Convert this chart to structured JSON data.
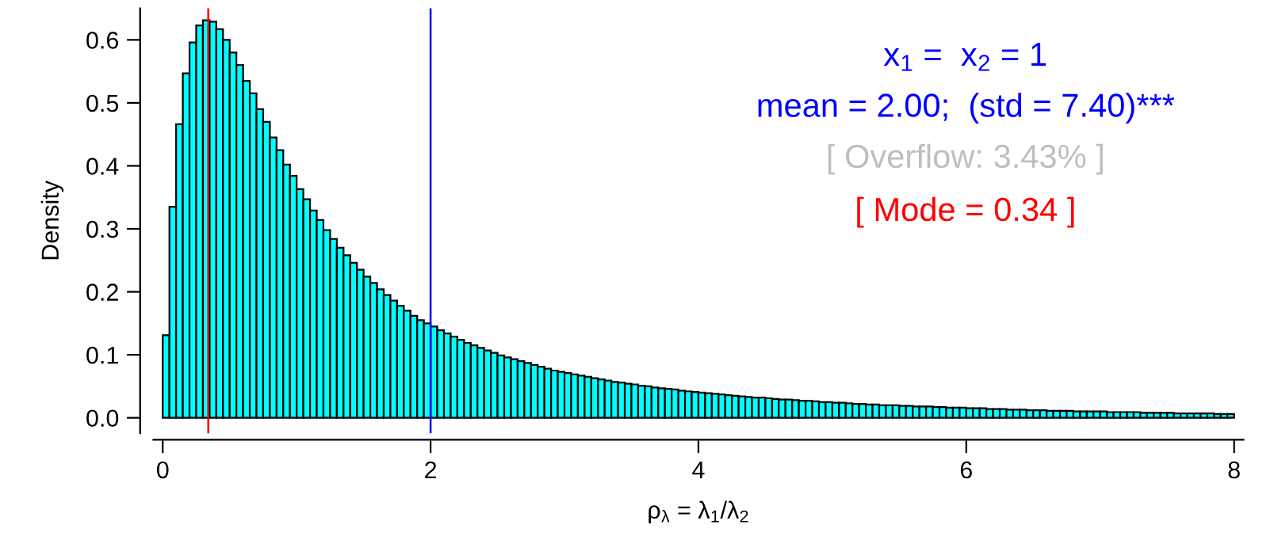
{
  "chart_data": {
    "type": "histogram",
    "xlabel": "ρ$_{λ}$ = λ$_{1}$/λ$_{2}$",
    "ylabel": "Density",
    "bins": [
      0,
      0.05,
      0.1,
      0.15,
      0.2,
      0.25,
      0.3,
      0.35,
      0.4,
      0.45,
      0.5,
      0.55,
      0.6,
      0.65,
      0.7,
      0.75,
      0.8,
      0.85,
      0.9,
      0.95,
      1,
      1.05,
      1.1,
      1.15,
      1.2,
      1.25,
      1.3,
      1.35,
      1.4,
      1.45,
      1.5,
      1.55,
      1.6,
      1.65,
      1.7,
      1.75,
      1.8,
      1.85,
      1.9,
      1.95,
      2,
      2.05,
      2.1,
      2.15,
      2.2,
      2.25,
      2.3,
      2.35,
      2.4,
      2.45,
      2.5,
      2.55,
      2.6,
      2.65,
      2.7,
      2.75,
      2.8,
      2.85,
      2.9,
      2.95,
      3,
      3.05,
      3.1,
      3.15,
      3.2,
      3.25,
      3.3,
      3.35,
      3.4,
      3.45,
      3.5,
      3.55,
      3.6,
      3.65,
      3.7,
      3.75,
      3.8,
      3.85,
      3.9,
      3.95,
      4,
      4.05,
      4.1,
      4.15,
      4.2,
      4.25,
      4.3,
      4.35,
      4.4,
      4.45,
      4.5,
      4.55,
      4.6,
      4.65,
      4.7,
      4.75,
      4.8,
      4.85,
      4.9,
      4.95,
      5,
      5.05,
      5.1,
      5.15,
      5.2,
      5.25,
      5.3,
      5.35,
      5.4,
      5.45,
      5.5,
      5.55,
      5.6,
      5.65,
      5.7,
      5.75,
      5.8,
      5.85,
      5.9,
      5.95,
      6,
      6.05,
      6.1,
      6.15,
      6.2,
      6.25,
      6.3,
      6.35,
      6.4,
      6.45,
      6.5,
      6.55,
      6.6,
      6.65,
      6.7,
      6.75,
      6.8,
      6.85,
      6.9,
      6.95,
      7,
      7.05,
      7.1,
      7.15,
      7.2,
      7.25,
      7.3,
      7.35,
      7.4,
      7.45,
      7.5,
      7.55,
      7.6,
      7.65,
      7.7,
      7.75,
      7.8,
      7.85,
      7.9,
      7.95,
      8
    ],
    "values": [
      0.131,
      0.335,
      0.466,
      0.547,
      0.596,
      0.623,
      0.631,
      0.629,
      0.617,
      0.6,
      0.58,
      0.56,
      0.535,
      0.515,
      0.49,
      0.47,
      0.445,
      0.425,
      0.402,
      0.384,
      0.363,
      0.347,
      0.329,
      0.314,
      0.298,
      0.284,
      0.27,
      0.258,
      0.246,
      0.235,
      0.224,
      0.214,
      0.204,
      0.195,
      0.186,
      0.178,
      0.17,
      0.162,
      0.155,
      0.15,
      0.145,
      0.139,
      0.134,
      0.129,
      0.124,
      0.119,
      0.115,
      0.111,
      0.107,
      0.103,
      0.099,
      0.096,
      0.093,
      0.09,
      0.087,
      0.084,
      0.081,
      0.078,
      0.075,
      0.073,
      0.071,
      0.069,
      0.067,
      0.065,
      0.063,
      0.061,
      0.059,
      0.057,
      0.056,
      0.054,
      0.053,
      0.051,
      0.05,
      0.048,
      0.047,
      0.046,
      0.045,
      0.043,
      0.042,
      0.041,
      0.04,
      0.039,
      0.038,
      0.037,
      0.036,
      0.035,
      0.034,
      0.033,
      0.032,
      0.032,
      0.031,
      0.03,
      0.029,
      0.029,
      0.028,
      0.027,
      0.027,
      0.026,
      0.025,
      0.025,
      0.024,
      0.024,
      0.023,
      0.022,
      0.022,
      0.021,
      0.021,
      0.02,
      0.02,
      0.02,
      0.019,
      0.019,
      0.018,
      0.018,
      0.018,
      0.017,
      0.017,
      0.016,
      0.016,
      0.016,
      0.015,
      0.015,
      0.015,
      0.014,
      0.014,
      0.014,
      0.013,
      0.013,
      0.013,
      0.012,
      0.012,
      0.012,
      0.011,
      0.011,
      0.011,
      0.011,
      0.01,
      0.01,
      0.01,
      0.01,
      0.01,
      0.009,
      0.009,
      0.009,
      0.009,
      0.009,
      0.008,
      0.008,
      0.008,
      0.008,
      0.008,
      0.007,
      0.007,
      0.007,
      0.007,
      0.007,
      0.007,
      0.006,
      0.006,
      0.006
    ],
    "color": "#00ffff",
    "xlim": [
      -0.07,
      8.07
    ],
    "ylim": [
      -0.0245,
      0.65
    ],
    "xticks": [
      0,
      2,
      4,
      6,
      8
    ],
    "yticks": [
      {
        "value": 0,
        "label": "0.0"
      },
      0.1,
      0.2,
      0.3,
      0.4,
      0.5,
      0.6
    ],
    "grid": false,
    "legend": false,
    "ref_lines": [
      {
        "axis": "x",
        "value": 0.34,
        "color": "#ff0000"
      },
      {
        "axis": "x",
        "value": 2.0,
        "color": "#0000ff"
      }
    ],
    "annotations": [
      "x$_{1}$ =  x$_{2}$ = 1",
      "mean = 2.00;  (std = 7.40)***",
      "[ Overflow: 3.43% ]",
      "[ Mode = 0.34 ]"
    ]
  }
}
